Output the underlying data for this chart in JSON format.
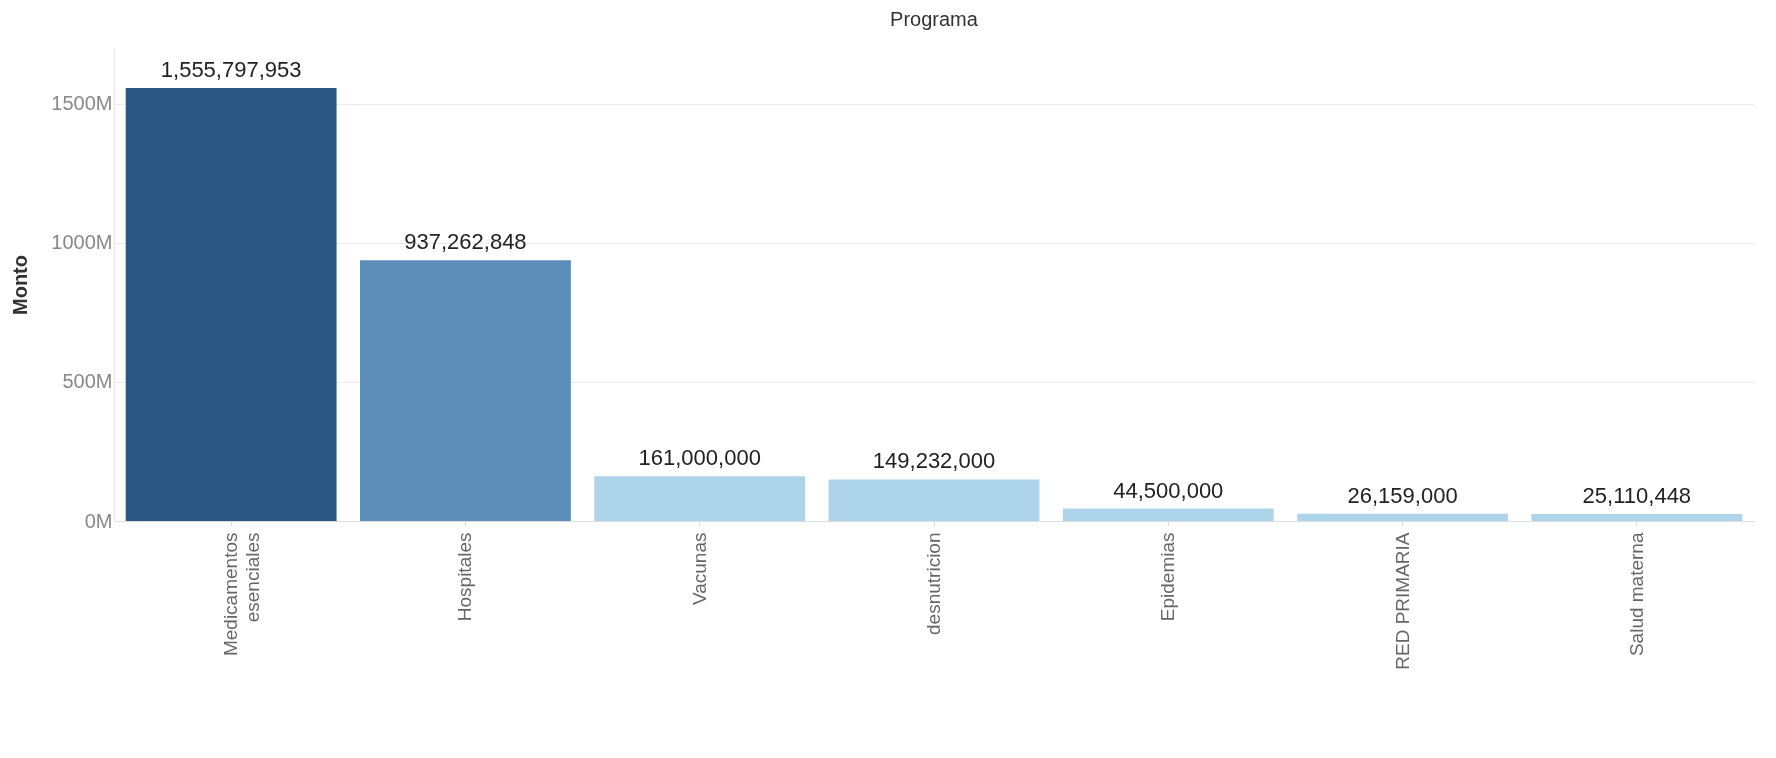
{
  "chart_data": {
    "type": "bar",
    "title": "Programa",
    "ylabel": "Monto",
    "categories": [
      "Medicamentos esenciales",
      "Hospitales",
      "Vacunas",
      "desnutricion",
      "Epidemias",
      "RED PRIMARIA",
      "Salud materna"
    ],
    "values": [
      1555797953,
      937262848,
      161000000,
      149232000,
      44500000,
      26159000,
      25110448
    ],
    "colors": [
      "#2a5783",
      "#5b8db8",
      "#aed4ea",
      "#aed4ea",
      "#aed4ea",
      "#aed4ea",
      "#aed4ea"
    ],
    "value_labels": [
      "1,555,797,953",
      "937,262,848",
      "161,000,000",
      "149,232,000",
      "44,500,000",
      "26,159,000",
      "25,110,448"
    ],
    "ylim": [
      0,
      1700000000
    ],
    "yticks": [
      {
        "value": 0,
        "label": "0M"
      },
      {
        "value": 500000000,
        "label": "500M"
      },
      {
        "value": 1000000000,
        "label": "1000M"
      },
      {
        "value": 1500000000,
        "label": "1500M"
      }
    ],
    "grid": "y"
  }
}
